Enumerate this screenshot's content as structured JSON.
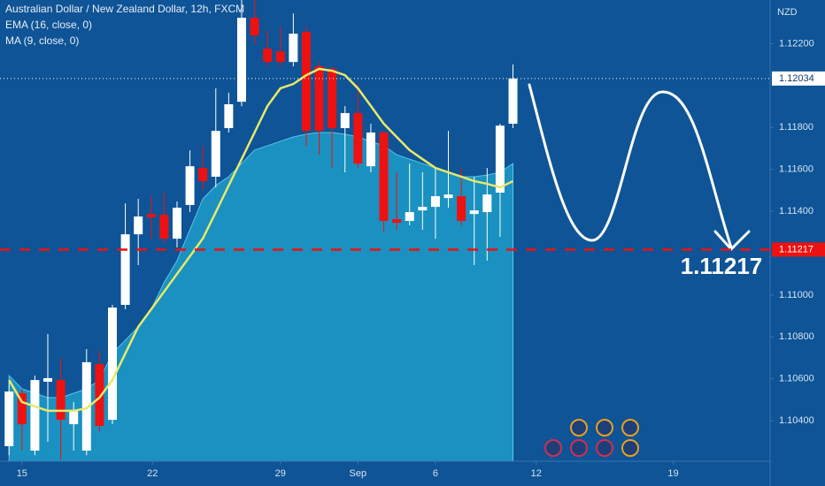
{
  "chart_data": {
    "type": "candlestick",
    "title": "Australian Dollar / New Zealand Dollar, 12h, FXCM",
    "currency": "NZD",
    "annotation": "1.11217",
    "up_color": "#ffffff",
    "down_color": "#ee1111",
    "open": [
      1.10278,
      1.10531,
      1.10257,
      1.10586,
      1.10594,
      1.10383,
      1.10257,
      1.1067,
      1.10404,
      1.10953,
      1.1129,
      1.11387,
      1.11383,
      1.11269,
      1.1143,
      1.11607,
      1.11565,
      1.11797,
      1.11923,
      1.12324,
      1.12177,
      1.12164,
      1.12113,
      1.12257,
      1.12092,
      1.1208,
      1.11797,
      1.11869,
      1.11615,
      1.11776,
      1.11362,
      1.11354,
      1.11404,
      1.11421,
      1.11463,
      1.11472,
      1.11387,
      1.11396,
      1.11489,
      1.11818
    ],
    "high": [
      1.10594,
      1.10552,
      1.10615,
      1.10814,
      1.107,
      1.10489,
      1.10742,
      1.10733,
      1.10953,
      1.11438,
      1.11459,
      1.11472,
      1.11489,
      1.11447,
      1.11691,
      1.11713,
      1.11987,
      1.11966,
      1.12409,
      1.12409,
      1.12261,
      1.12282,
      1.12345,
      1.12282,
      1.12113,
      1.12092,
      1.11902,
      1.12008,
      1.11818,
      1.11784,
      1.11586,
      1.11628,
      1.11586,
      1.11607,
      1.11784,
      1.11607,
      1.11565,
      1.11607,
      1.11818,
      1.12101
    ],
    "low": [
      1.10235,
      1.10257,
      1.10235,
      1.10299,
      1.10214,
      1.10257,
      1.10235,
      1.10349,
      1.10383,
      1.10932,
      1.11143,
      1.11269,
      1.11248,
      1.11227,
      1.11396,
      1.11501,
      1.11514,
      1.11776,
      1.11902,
      1.12198,
      1.12092,
      1.12092,
      1.12092,
      1.11712,
      1.1167,
      1.11607,
      1.11586,
      1.11607,
      1.11586,
      1.11303,
      1.11312,
      1.11333,
      1.11312,
      1.11269,
      1.11417,
      1.11333,
      1.11143,
      1.11164,
      1.11278,
      1.11797
    ],
    "close": [
      1.10539,
      1.10383,
      1.10594,
      1.10603,
      1.10404,
      1.10446,
      1.10679,
      1.10375,
      1.1094,
      1.1129,
      1.11375,
      1.11371,
      1.11269,
      1.11417,
      1.11615,
      1.11544,
      1.11784,
      1.11911,
      1.12324,
      1.1224,
      1.12113,
      1.12113,
      1.12248,
      1.11784,
      1.11784,
      1.11797,
      1.11869,
      1.11628,
      1.11776,
      1.11354,
      1.11345,
      1.11396,
      1.11421,
      1.11472,
      1.1148,
      1.11354,
      1.11404,
      1.1148,
      1.11809,
      1.12034
    ],
    "series": [
      {
        "name": "EMA (16, close, 0)",
        "color": "#e8e86a",
        "style": "line",
        "values": [
          1.10594,
          1.10489,
          1.10468,
          1.10447,
          1.10447,
          1.10447,
          1.10459,
          1.1051,
          1.10594,
          1.10721,
          1.10848,
          1.10932,
          1.11016,
          1.11101,
          1.11185,
          1.1127,
          1.11396,
          1.11523,
          1.11649,
          1.11776,
          1.11903,
          1.11987,
          1.12008,
          1.1205,
          1.1208,
          1.12071,
          1.1205,
          1.11987,
          1.11903,
          1.11818,
          1.11755,
          1.11692,
          1.11649,
          1.11607,
          1.11586,
          1.11565,
          1.11544,
          1.11531,
          1.11514,
          1.11544
        ]
      },
      {
        "name": "MA (9, close, 0)",
        "color": "#1c9cc8",
        "style": "area",
        "values": [
          1.10615,
          1.10552,
          1.10531,
          1.1051,
          1.1051,
          1.10531,
          1.10552,
          1.10594,
          1.10721,
          1.10784,
          1.10848,
          1.10932,
          1.11059,
          1.11164,
          1.11312,
          1.11459,
          1.11523,
          1.11565,
          1.11628,
          1.11692,
          1.11713,
          1.11734,
          1.11755,
          1.11768,
          1.11776,
          1.11776,
          1.11768,
          1.11755,
          1.11734,
          1.11713,
          1.1167,
          1.11649,
          1.11628,
          1.11607,
          1.11586,
          1.11565,
          1.11565,
          1.11573,
          1.11586,
          1.11628
        ]
      }
    ],
    "levels": [
      {
        "value": 1.12034,
        "label": "1.12034",
        "color": "#ffffff",
        "dash": "1 3"
      },
      {
        "value": 1.11217,
        "label": "1.11217",
        "color": "#ee1111",
        "dash": "12 10"
      }
    ],
    "xlim": [
      -0.7,
      58.9
    ],
    "xticks": [
      {
        "value": 1,
        "label": "15"
      },
      {
        "value": 11.1,
        "label": "22"
      },
      {
        "value": 21,
        "label": "29"
      },
      {
        "value": 27,
        "label": "Sep"
      },
      {
        "value": 33,
        "label": "6"
      },
      {
        "value": 40.8,
        "label": "12"
      },
      {
        "value": 51.4,
        "label": "19"
      }
    ],
    "ylim": [
      1.10206,
      1.12409
    ],
    "yticks": [
      {
        "value": 1.104,
        "label": "1.10400"
      },
      {
        "value": 1.106,
        "label": "1.10600"
      },
      {
        "value": 1.108,
        "label": "1.10800"
      },
      {
        "value": 1.11,
        "label": "1.11000"
      },
      {
        "value": 1.114,
        "label": "1.11400"
      },
      {
        "value": 1.116,
        "label": "1.11600"
      },
      {
        "value": 1.118,
        "label": "1.11800"
      },
      {
        "value": 1.122,
        "label": "1.12200"
      }
    ]
  }
}
